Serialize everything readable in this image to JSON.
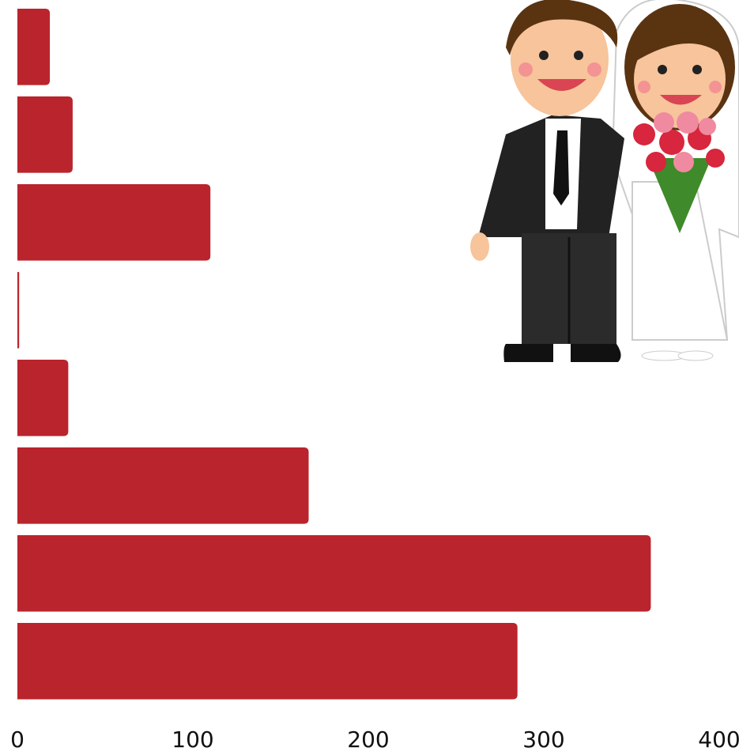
{
  "chart_data": {
    "type": "bar",
    "orientation": "horizontal",
    "categories": [
      null,
      null,
      null,
      null,
      null,
      null,
      null,
      null
    ],
    "values": [
      18.5,
      31.5,
      110,
      1,
      29,
      166,
      361,
      285
    ],
    "color": "#ba242c",
    "xlim": [
      0,
      400
    ],
    "xticks": [
      0,
      100,
      200,
      300,
      400
    ],
    "grid": false
  }
}
